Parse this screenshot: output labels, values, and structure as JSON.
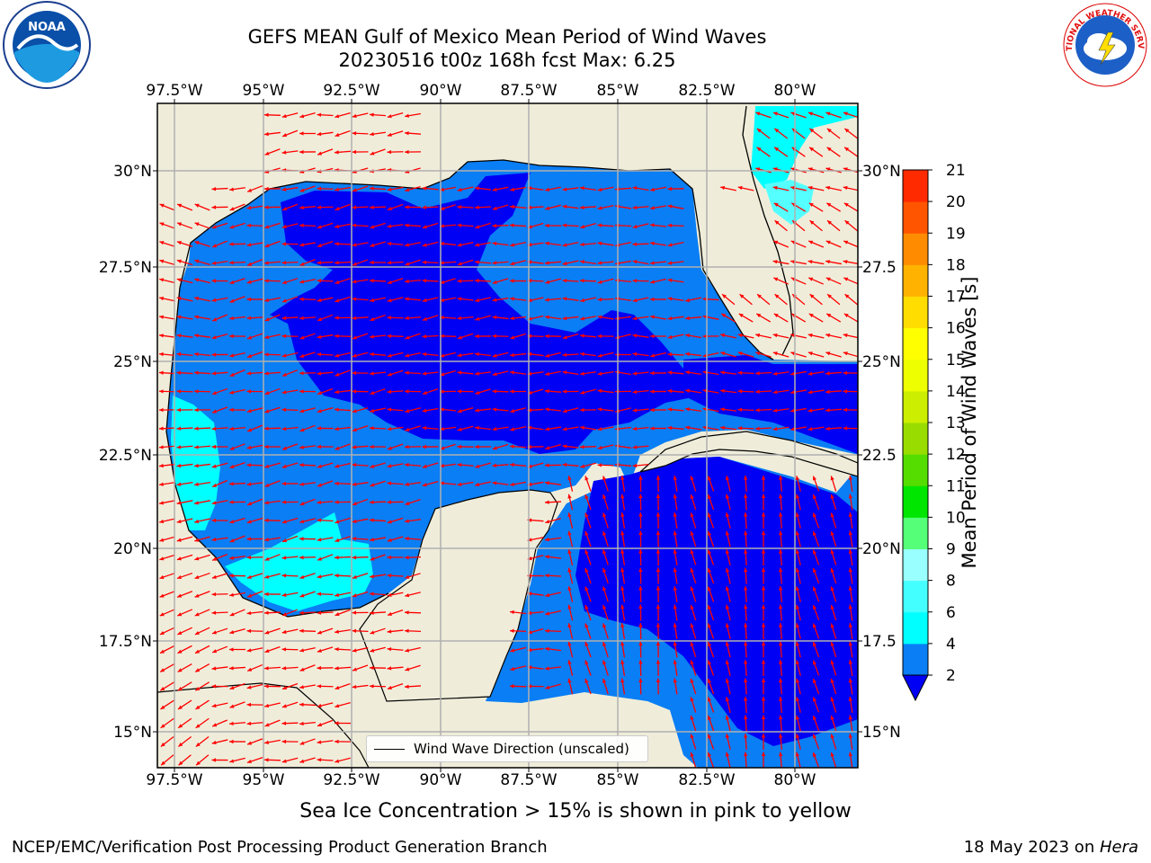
{
  "header": {
    "title_line1": "GEFS MEAN Gulf of Mexico Mean Period of Wind Waves",
    "title_line2": "20230516 t00z 168h fcst   Max: 6.25"
  },
  "logos": {
    "noaa_text": "NOAA",
    "nws_text": "NATIONAL WEATHER SERVICE"
  },
  "map": {
    "lon_ticks": [
      "97.5°W",
      "95°W",
      "92.5°W",
      "90°W",
      "87.5°W",
      "85°W",
      "82.5°W",
      "80°W"
    ],
    "lat_ticks": [
      "30°N",
      "27.5°N",
      "25°N",
      "22.5°N",
      "20°N",
      "17.5°N",
      "15°N"
    ],
    "lat_ticks_right": [
      "30°N",
      "27.5",
      "25°N",
      "22.5",
      "20°N",
      "17.5",
      "15°N"
    ],
    "colors": {
      "land": "#efedda",
      "band_2_4": "#0a7ef4",
      "band_lt2": "#0000f5",
      "band_4_6": "#00ffff",
      "band_6_8": "#55ffff",
      "arrow": "#ff0000",
      "grid": "#b0b0b0"
    }
  },
  "legend": {
    "label": "Wind Wave Direction (unscaled)"
  },
  "colorbar": {
    "label": "Mean Period of Wind Waves [s]",
    "ticks": [
      "2",
      "4",
      "6",
      "8",
      "9",
      "10",
      "11",
      "12",
      "13",
      "14",
      "15",
      "16",
      "17",
      "18",
      "19",
      "20",
      "21"
    ],
    "colors": [
      "#0a7ef4",
      "#00ffff",
      "#44ffff",
      "#99ffff",
      "#55ff77",
      "#00e600",
      "#55dd00",
      "#99dd00",
      "#ccee00",
      "#eeff00",
      "#ffff00",
      "#ffdd00",
      "#ffb300",
      "#ff8c00",
      "#ff5500",
      "#ff2a00"
    ],
    "under_color": "#0000f5"
  },
  "footer": {
    "subtitle": "Sea Ice Concentration > 15% is shown in pink to yellow",
    "credit": "NCEP/EMC/Verification Post Processing Product Generation Branch",
    "date_prefix": "18 May 2023 on ",
    "date_host": "Hera"
  }
}
